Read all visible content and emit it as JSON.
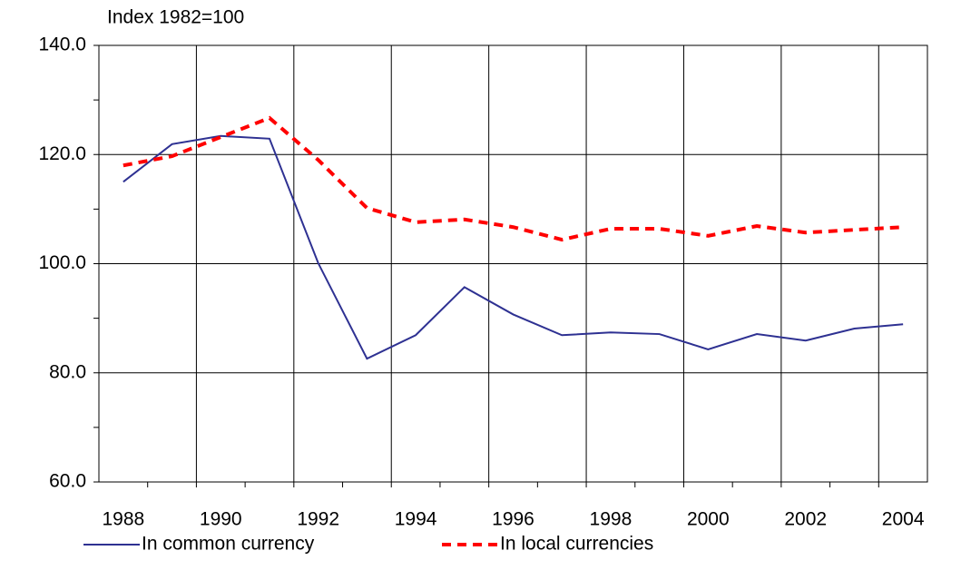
{
  "chart_data": {
    "type": "line",
    "y_axis_label": "Index 1982=100",
    "categories": [
      "1988",
      null,
      "1990",
      null,
      "1992",
      null,
      "1994",
      null,
      "1996",
      null,
      "1998",
      null,
      "2000",
      null,
      "2002",
      null,
      "2004"
    ],
    "series": [
      {
        "name": "In common currency",
        "color": "#2e3192",
        "style": "solid",
        "values": [
          115.0,
          121.9,
          123.4,
          122.9,
          100.1,
          82.6,
          86.9,
          95.7,
          90.7,
          86.9,
          87.4,
          87.1,
          84.3,
          87.1,
          85.9,
          88.1,
          88.9
        ]
      },
      {
        "name": "In local currencies",
        "color": "#ff0000",
        "style": "dashed",
        "values": [
          118.0,
          119.7,
          123.2,
          126.7,
          119.0,
          110.2,
          107.6,
          108.1,
          106.7,
          104.4,
          106.4,
          106.4,
          105.1,
          106.9,
          105.7,
          106.2,
          106.7
        ]
      }
    ],
    "ylim": [
      60,
      140
    ],
    "yticks": [
      {
        "value": 60,
        "label": "60.0"
      },
      {
        "value": 80,
        "label": "80.0"
      },
      {
        "value": 100,
        "label": "100.0"
      },
      {
        "value": 120,
        "label": "120.0"
      },
      {
        "value": 140,
        "label": "140.0"
      }
    ],
    "grid": true,
    "legend": "bottom"
  }
}
